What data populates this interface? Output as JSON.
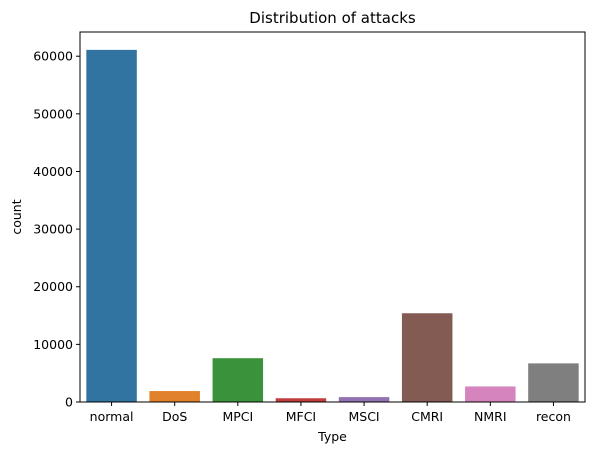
{
  "chart_data": {
    "type": "bar",
    "title": "Distribution of attacks",
    "xlabel": "Type",
    "ylabel": "count",
    "categories": [
      "normal",
      "DoS",
      "MPCI",
      "MFCI",
      "MSCI",
      "CMRI",
      "NMRI",
      "recon"
    ],
    "values": [
      61100,
      1900,
      7600,
      650,
      850,
      15400,
      2700,
      6700
    ],
    "colors": [
      "#3274a1",
      "#e1812c",
      "#3a923a",
      "#c03d3e",
      "#9372b2",
      "#845b53",
      "#d684bd",
      "#7f7f7f"
    ],
    "yticks": [
      0,
      10000,
      20000,
      30000,
      40000,
      50000,
      60000
    ],
    "ylim": [
      0,
      64200
    ],
    "grid": false
  }
}
